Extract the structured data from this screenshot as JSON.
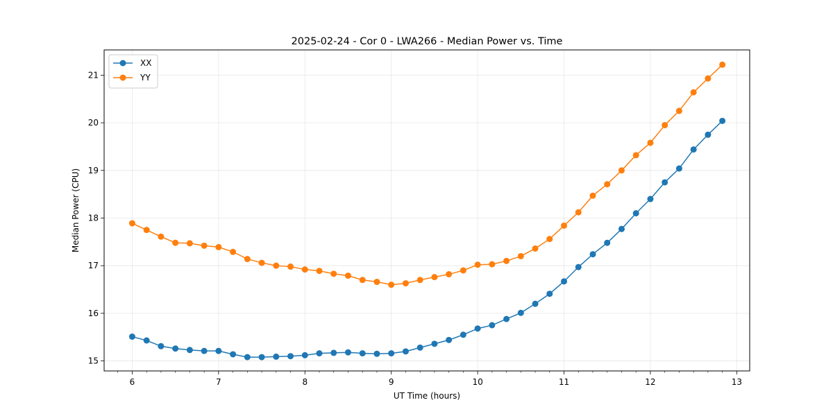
{
  "chart_data": {
    "type": "line",
    "title": "2025-02-24 - Cor 0 - LWA266 - Median Power vs. Time",
    "xlabel": "UT Time (hours)",
    "ylabel": "Median Power (CPU)",
    "xlim": [
      5.675,
      13.15
    ],
    "ylim": [
      14.79,
      21.53
    ],
    "xticks": [
      6,
      7,
      8,
      9,
      10,
      11,
      12,
      13
    ],
    "yticks": [
      15,
      16,
      17,
      18,
      19,
      20,
      21
    ],
    "grid": true,
    "legend_position": "top-left",
    "x": [
      6.0,
      6.1667,
      6.3333,
      6.5,
      6.6667,
      6.8333,
      7.0,
      7.1667,
      7.3333,
      7.5,
      7.6667,
      7.8333,
      8.0,
      8.1667,
      8.3333,
      8.5,
      8.6667,
      8.8333,
      9.0,
      9.1667,
      9.3333,
      9.5,
      9.6667,
      9.8333,
      10.0,
      10.1667,
      10.3333,
      10.5,
      10.6667,
      10.8333,
      11.0,
      11.1667,
      11.3333,
      11.5,
      11.6667,
      11.8333,
      12.0,
      12.1667,
      12.3333,
      12.5,
      12.6667,
      12.8333
    ],
    "series": [
      {
        "name": "XX",
        "color": "#1f77b4",
        "values": [
          15.51,
          15.43,
          15.31,
          15.26,
          15.23,
          15.21,
          15.21,
          15.14,
          15.08,
          15.08,
          15.09,
          15.1,
          15.12,
          15.16,
          15.17,
          15.18,
          15.16,
          15.15,
          15.16,
          15.2,
          15.28,
          15.36,
          15.44,
          15.55,
          15.68,
          15.75,
          15.88,
          16.01,
          16.2,
          16.41,
          16.67,
          16.97,
          17.24,
          17.48,
          17.77,
          18.1,
          18.4,
          18.75,
          19.04,
          19.44,
          19.75,
          20.04
        ]
      },
      {
        "name": "YY",
        "color": "#ff7f0e",
        "values": [
          17.89,
          17.75,
          17.61,
          17.48,
          17.47,
          17.42,
          17.39,
          17.29,
          17.14,
          17.06,
          17.0,
          16.98,
          16.92,
          16.89,
          16.83,
          16.79,
          16.7,
          16.66,
          16.6,
          16.63,
          16.7,
          16.76,
          16.82,
          16.9,
          17.02,
          17.03,
          17.1,
          17.2,
          17.36,
          17.56,
          17.84,
          18.12,
          18.47,
          18.71,
          19.0,
          19.32,
          19.58,
          19.95,
          20.25,
          20.64,
          20.93,
          21.22
        ]
      }
    ]
  }
}
